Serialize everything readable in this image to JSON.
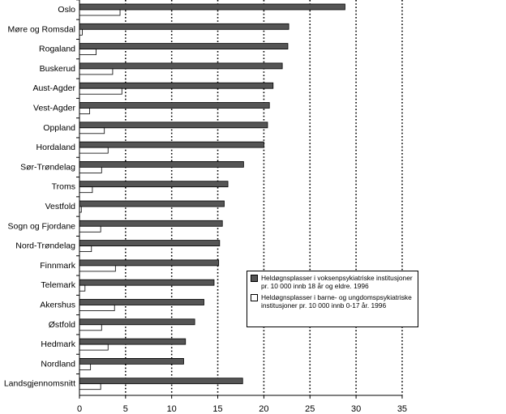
{
  "chart_data": {
    "type": "bar",
    "orientation": "horizontal",
    "title": "",
    "xlabel": "",
    "ylabel": "",
    "xlim": [
      0,
      35
    ],
    "xticks": [
      0,
      5,
      10,
      15,
      20,
      25,
      30,
      35
    ],
    "grid": "vertical dotted",
    "legend_position": "lower-right",
    "categories": [
      "Oslo",
      "Møre og Romsdal",
      "Rogaland",
      "Buskerud",
      "Aust-Agder",
      "Vest-Agder",
      "Oppland",
      "Hordaland",
      "Sør-Trøndelag",
      "Troms",
      "Vestfold",
      "Sogn og Fjordane",
      "Nord-Trøndelag",
      "Finnmark",
      "Telemark",
      "Akershus",
      "Østfold",
      "Hedmark",
      "Nordland",
      "Landsgjennomsnitt"
    ],
    "series": [
      {
        "name": "Heldøgnsplasser i voksenpsykiatriske institusjoner pr. 10 000 innb 18 år og eldre. 1996",
        "color": "#555555",
        "values": [
          28.8,
          22.7,
          22.6,
          22.0,
          21.0,
          20.6,
          20.4,
          20.0,
          17.8,
          16.1,
          15.7,
          15.5,
          15.2,
          15.1,
          14.6,
          13.5,
          12.5,
          11.5,
          11.3,
          17.7
        ]
      },
      {
        "name": "Heldøgnsplasser i barne- og ungdomspsykiatriske institusjoner pr. 10 000 innb 0-17 år. 1996",
        "color": "#ffffff",
        "values": [
          4.4,
          0.3,
          1.8,
          3.6,
          4.6,
          1.1,
          2.7,
          3.1,
          2.4,
          1.4,
          0.2,
          2.3,
          1.3,
          3.9,
          0.6,
          3.8,
          2.4,
          3.1,
          1.2,
          2.3
        ]
      }
    ]
  },
  "legend": {
    "entries": [
      {
        "line1": "Heldøgnsplasser i voksenpsykiatriske institusjoner",
        "line2": "pr. 10 000 innb 18 år og eldre. 1996"
      },
      {
        "line1": "Heldøgnsplasser i barne- og ungdomspsykiatriske",
        "line2": "institusjoner pr. 10 000 innb 0-17 år. 1996"
      }
    ]
  }
}
